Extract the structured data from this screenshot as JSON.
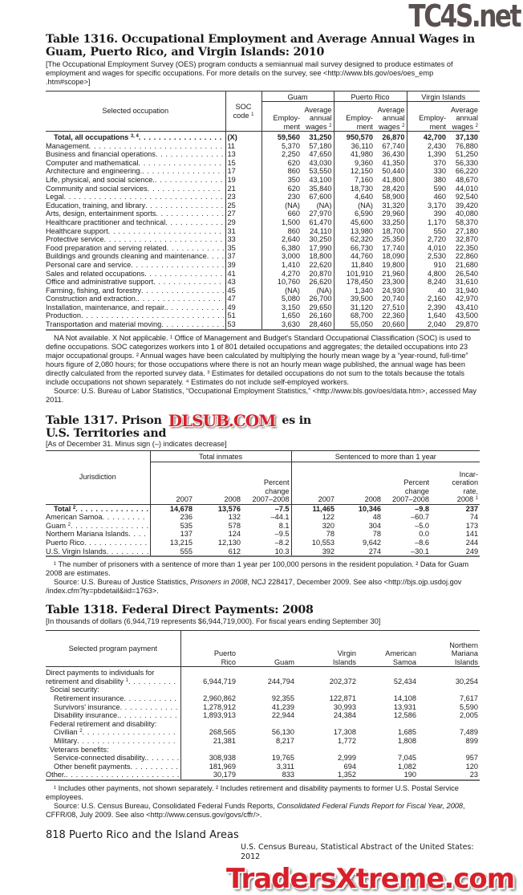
{
  "watermarks": {
    "top": "TC4S.net",
    "middle": "DLSUB.COM",
    "bottom": "TradersXtreme.com"
  },
  "t1316": {
    "title": "Table 1316. Occupational Employment and Average Annual Wages in Guam, Puerto Rico, and Virgin Islands: 2010",
    "intro": "[The Occupational Employment Survey (OES) program conducts a semiannual mail survey designed to produce estimates of employment and wages for specific occupations. For more details on the survey, see <http://www.bls.gov/oes/oes_emp .htm#scope>]",
    "headers": {
      "occupation": "Selected occupation",
      "soc": "SOC code",
      "soc_sup": "1",
      "regions": [
        "Guam",
        "Puerto Rico",
        "Virgin Islands"
      ],
      "employment": "Employ- ment",
      "wages": "Average annual wages",
      "wages_sup": "2"
    },
    "rows": [
      {
        "label": "Total, all occupations",
        "sup": "3, 4",
        "soc": "(X)",
        "values": [
          "59,560",
          "31,250",
          "950,570",
          "26,870",
          "42,700",
          "37,130"
        ],
        "bold": true
      },
      {
        "label": "Management",
        "soc": "11",
        "values": [
          "5,370",
          "57,180",
          "36,110",
          "67,740",
          "2,430",
          "76,880"
        ]
      },
      {
        "label": "Business and financial operations",
        "soc": "13",
        "values": [
          "2,250",
          "47,650",
          "41,980",
          "36,430",
          "1,390",
          "51,250"
        ]
      },
      {
        "label": "Computer and mathematical",
        "soc": "15",
        "values": [
          "620",
          "43,030",
          "9,360",
          "41,350",
          "370",
          "56,330"
        ]
      },
      {
        "label": "Architecture and engineering.",
        "soc": "17",
        "values": [
          "860",
          "53,550",
          "12,150",
          "50,440",
          "330",
          "66,220"
        ]
      },
      {
        "label": "Life, physical, and social science.",
        "soc": "19",
        "values": [
          "350",
          "43,100",
          "7,160",
          "41,800",
          "380",
          "48,670"
        ]
      },
      {
        "label": "Community and social services",
        "soc": "21",
        "values": [
          "620",
          "35,840",
          "18,730",
          "28,420",
          "590",
          "44,010"
        ]
      },
      {
        "label": "Legal",
        "soc": "23",
        "values": [
          "230",
          "67,600",
          "4,640",
          "58,900",
          "460",
          "92,540"
        ]
      },
      {
        "label": "Education, training, and library",
        "soc": "25",
        "values": [
          "(NA)",
          "(NA)",
          "(NA)",
          "31,320",
          "3,170",
          "39,420"
        ]
      },
      {
        "label": "Arts, design, entertainment sports",
        "soc": "27",
        "values": [
          "660",
          "27,970",
          "6,590",
          "29,960",
          "390",
          "40,080"
        ]
      },
      {
        "label": "Healthcare practitioner and technical",
        "soc": "29",
        "values": [
          "1,500",
          "61,470",
          "45,600",
          "33,250",
          "1,170",
          "58,370"
        ]
      },
      {
        "label": "Healthcare support",
        "soc": "31",
        "values": [
          "860",
          "24,110",
          "13,980",
          "18,700",
          "550",
          "27,180"
        ]
      },
      {
        "label": "Protective service",
        "soc": "33",
        "values": [
          "2,640",
          "30,250",
          "62,320",
          "25,350",
          "2,720",
          "32,870"
        ]
      },
      {
        "label": "Food preparation and serving related",
        "soc": "35",
        "values": [
          "6,380",
          "17,990",
          "66,730",
          "17,740",
          "4,010",
          "22,350"
        ]
      },
      {
        "label": "Buildings and grounds cleaning and maintenance",
        "soc": "37",
        "values": [
          "3,000",
          "18,800",
          "44,760",
          "18,090",
          "2,530",
          "22,860"
        ]
      },
      {
        "label": "Personal care and service",
        "soc": "39",
        "values": [
          "1,410",
          "22,620",
          "11,840",
          "19,800",
          "910",
          "21,680"
        ]
      },
      {
        "label": "Sales and related occupations",
        "soc": "41",
        "values": [
          "4,270",
          "20,870",
          "101,910",
          "21,960",
          "4,800",
          "26,540"
        ]
      },
      {
        "label": "Office and administrative support",
        "soc": "43",
        "values": [
          "10,760",
          "26,620",
          "178,450",
          "23,300",
          "8,240",
          "31,610"
        ]
      },
      {
        "label": "Farming, fishing, and forestry",
        "soc": "45",
        "values": [
          "(NA)",
          "(NA)",
          "1,340",
          "24,930",
          "40",
          "31,940"
        ]
      },
      {
        "label": "Construction and extraction.",
        "soc": "47",
        "values": [
          "5,080",
          "26,700",
          "39,500",
          "20,740",
          "2,160",
          "42,970"
        ]
      },
      {
        "label": "Installation, maintenance, and repair.",
        "soc": "49",
        "values": [
          "3,150",
          "29,650",
          "31,120",
          "27,510",
          "2,390",
          "43,410"
        ]
      },
      {
        "label": "Production",
        "soc": "51",
        "values": [
          "1,650",
          "26,160",
          "68,700",
          "22,360",
          "1,640",
          "43,500"
        ]
      },
      {
        "label": "Transportation and material moving",
        "soc": "53",
        "values": [
          "3,630",
          "28,460",
          "55,050",
          "20,660",
          "2,040",
          "29,870"
        ]
      }
    ],
    "footnotes": "NA Not available. X Not applicable. ¹ Office of Management and Budget's Standard Occupational Classification (SOC) is used to define occupations. SOC categorizes workers into 1 of 801 detailed occupations and aggregates; the detailed occupations into 23 major occupational groups. ² Annual wages have been calculated by multiplying the hourly mean wage by a “year-round, full-time” hours figure of 2,080 hours; for those occupations where there is not an hourly mean wage published, the annual wage has been directly calculated from the reported survey data. ³ Estimates for detailed occupations do not sum to the totals because the totals include occupations not shown separately. ⁴ Estimates do not include self-employed workers.",
    "source": "Source: U.S. Bureau of Labor Statistics, “Occupational Employment Statistics,” <http://www.bls.gov/oes/data.htm>, accessed May 2011."
  },
  "t1317": {
    "title_part1": "Table 1317. Prison",
    "title_part2": "es in",
    "title_line2": "U.S. Territories and",
    "intro": "[As of December 31. Minus sign (–) indicates decrease]",
    "headers": {
      "jurisdiction": "Jurisdiction",
      "group1": "Total inmates",
      "group2": "Sentenced to more than 1 year",
      "y2007": "2007",
      "y2008": "2008",
      "pct": "Percent change 2007–2008",
      "rate": "Incar- ceration rate, 2008",
      "rate_sup": "1"
    },
    "rows": [
      {
        "label": "Total",
        "sup": "2",
        "values": [
          "14,678",
          "13,576",
          "–7.5",
          "11,465",
          "10,346",
          "–9.8",
          "237"
        ],
        "bold": true
      },
      {
        "label": "American Samoa",
        "values": [
          "236",
          "132",
          "–44.1",
          "122",
          "48",
          "–60.7",
          "74"
        ]
      },
      {
        "label": "Guam",
        "sup": "2",
        "values": [
          "535",
          "578",
          "8.1",
          "320",
          "304",
          "–5.0",
          "173"
        ]
      },
      {
        "label": "Northern Mariana Islands",
        "values": [
          "137",
          "124",
          "–9.5",
          "78",
          "78",
          "0.0",
          "141"
        ]
      },
      {
        "label": "Puerto Rico",
        "values": [
          "13,215",
          "12,130",
          "–8.2",
          "10,553",
          "9,642",
          "–8.6",
          "244"
        ]
      },
      {
        "label": "U.S. Virgin Islands",
        "values": [
          "555",
          "612",
          "10.3",
          "392",
          "274",
          "–30.1",
          "249"
        ]
      }
    ],
    "footnotes": "¹ The number of prisoners with a sentence of more than 1 year per 100,000 persons in the resident population. ² Data for Guam 2008 are estimates.",
    "source_pre": "Source: U.S. Bureau of Justice Statistics, ",
    "source_italic": "Prisoners in 2008",
    "source_post": ", NCJ 228417, December 2009. See also <http://bjs.ojp.usdoj.gov /index.cfm?ty=pbdetail&iid=1763>."
  },
  "t1318": {
    "title": "Table 1318. Federal Direct Payments: 2008",
    "intro": "[In thousands of dollars (6,944,719 represents $6,944,719,000). For fiscal years ending September 30]",
    "headers": {
      "program": "Selected program payment",
      "cols": [
        "Puerto Rico",
        "Guam",
        "Virgin Islands",
        "American Samoa",
        "Northern Mariana Islands"
      ]
    },
    "rows": [
      {
        "label": "Direct payments to individuals for",
        "indent": 0,
        "values": []
      },
      {
        "label": "retirement and disability",
        "sup": "1",
        "indent": 0,
        "values": [
          "6,944,719",
          "244,794",
          "202,372",
          "52,434",
          "30,254"
        ]
      },
      {
        "label": "Social security:",
        "indent": 1,
        "values": []
      },
      {
        "label": "Retirement insurance",
        "indent": 2,
        "values": [
          "2,960,862",
          "92,355",
          "122,871",
          "14,108",
          "7,617"
        ]
      },
      {
        "label": "Survivors' insurance",
        "indent": 2,
        "values": [
          "1,278,912",
          "41,239",
          "30,993",
          "13,931",
          "5,590"
        ]
      },
      {
        "label": "Disability insurance.",
        "indent": 2,
        "values": [
          "1,893,913",
          "22,944",
          "24,384",
          "12,586",
          "2,005"
        ]
      },
      {
        "label": "Federal retirement and disability:",
        "indent": 1,
        "values": []
      },
      {
        "label": "Civilian",
        "sup": "2",
        "indent": 2,
        "values": [
          "268,565",
          "56,130",
          "17,308",
          "1,685",
          "7,489"
        ]
      },
      {
        "label": "Military",
        "indent": 2,
        "values": [
          "21,381",
          "8,217",
          "1,772",
          "1,808",
          "899"
        ]
      },
      {
        "label": "Veterans benefits:",
        "indent": 1,
        "values": []
      },
      {
        "label": "Service-connected disability.",
        "indent": 2,
        "values": [
          "308,938",
          "19,765",
          "2,999",
          "7,045",
          "957"
        ]
      },
      {
        "label": "Other benefit payments",
        "indent": 2,
        "values": [
          "181,969",
          "3,311",
          "694",
          "1,082",
          "120"
        ]
      },
      {
        "label": "Other.",
        "indent": 0,
        "values": [
          "30,179",
          "833",
          "1,352",
          "190",
          "23"
        ]
      }
    ],
    "footnotes": "¹ Includes other payments, not shown separately. ² Includes retirement and disability payments to former U.S. Postal Service employees.",
    "source_pre": "Source: U.S. Census Bureau, Consolidated Federal Funds Reports, ",
    "source_italic": "Consolidated Federal Funds Report for Fiscal Year, 2008",
    "source_post": ", CFFR/08, July 2009. See also <http://www.census.gov/govs/cffr/>."
  },
  "footer": {
    "page_label": "818  Puerto Rico and the Island Areas",
    "publication": "U.S. Census Bureau, Statistical Abstract of the United States: 2012"
  }
}
